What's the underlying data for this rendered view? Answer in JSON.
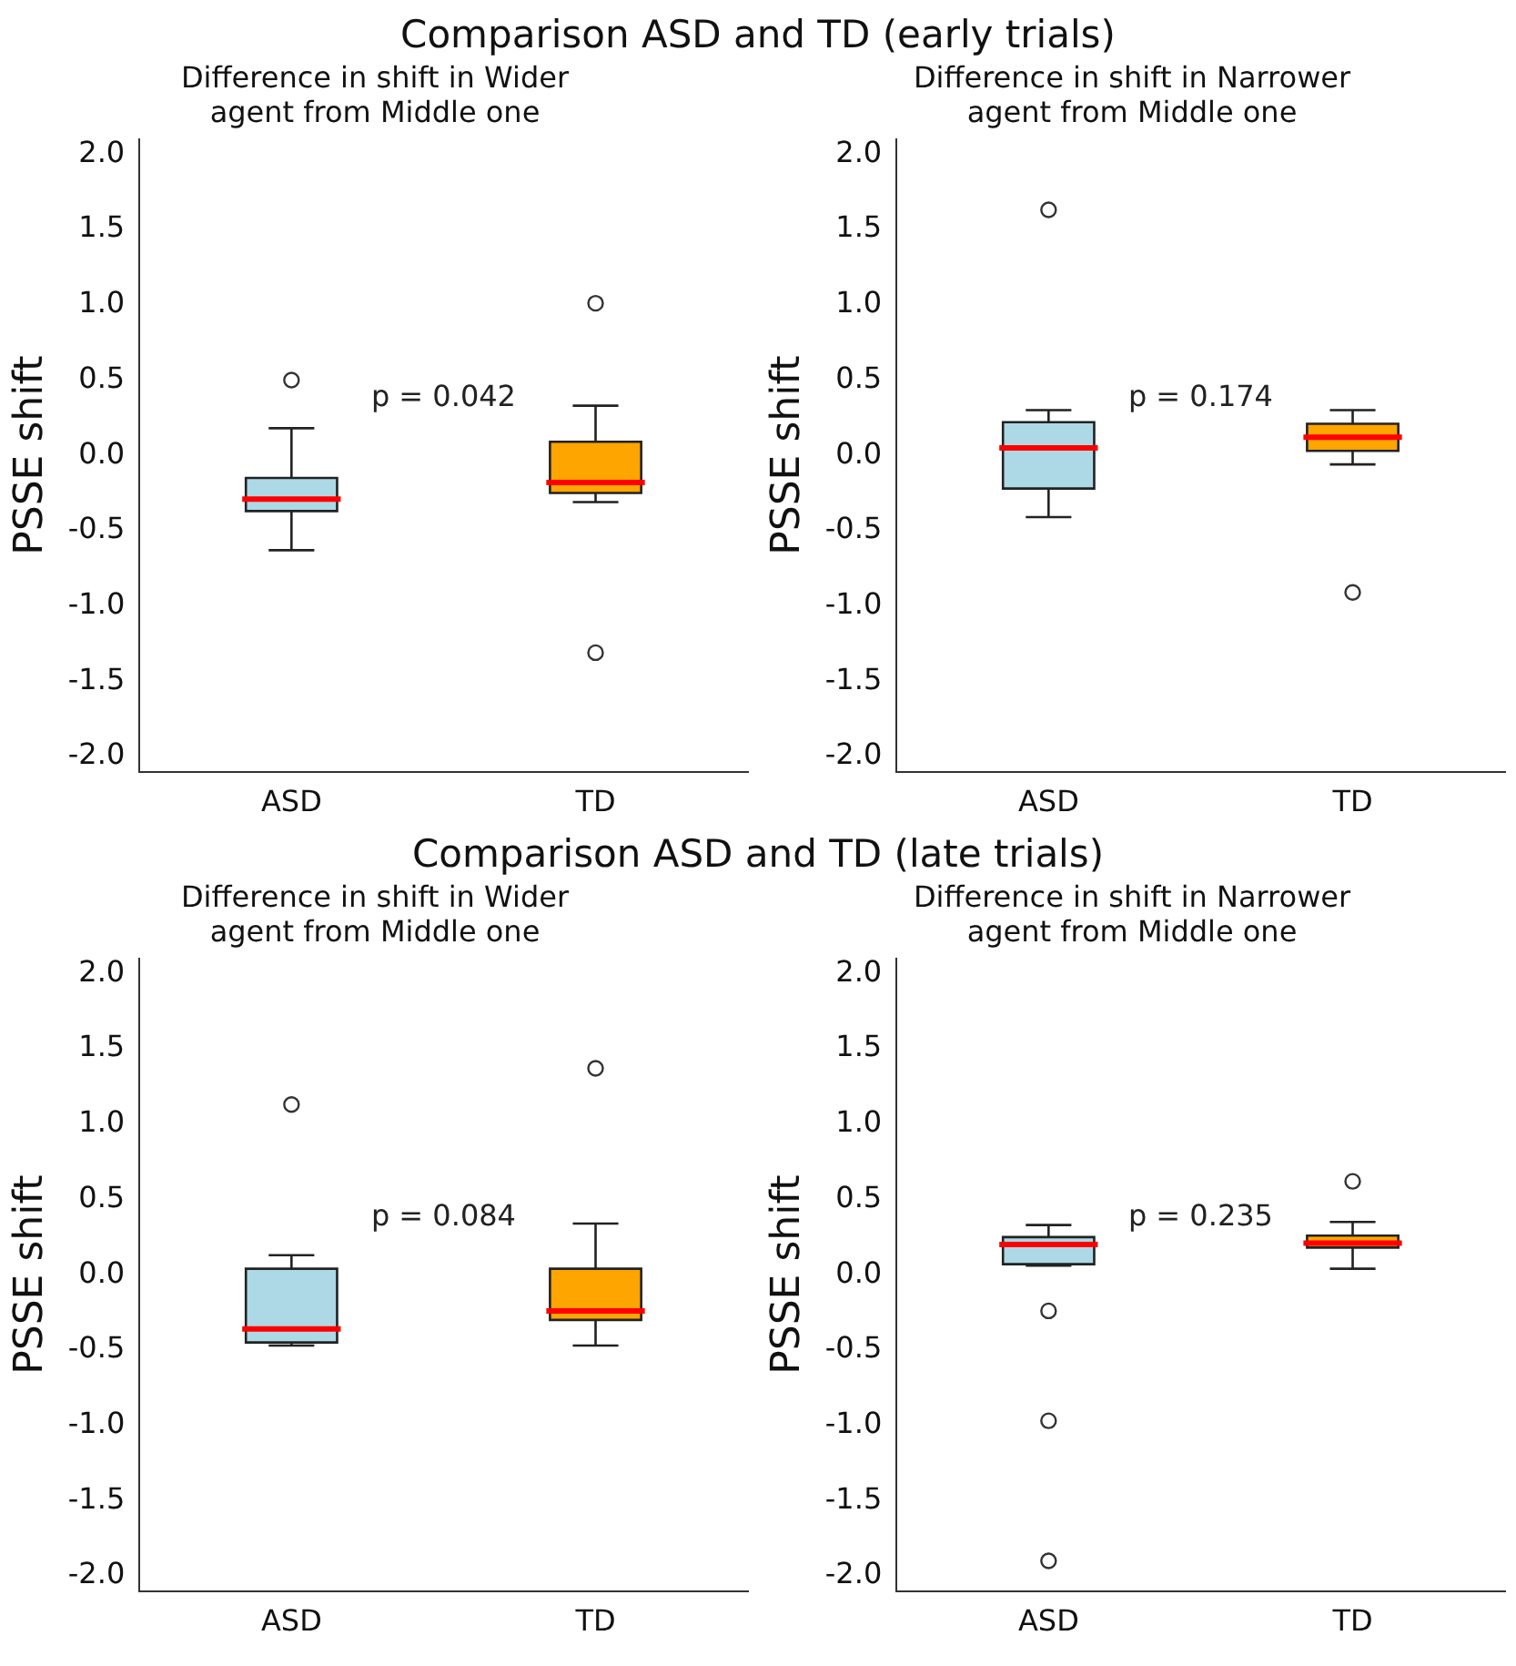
{
  "chart_data": [
    {
      "type": "other",
      "title": "Comparison ASD and TD (early trials)"
    },
    {
      "type": "box",
      "title": "Difference in shift in Wider\nagent from Middle one",
      "ylabel": "PSSE shift",
      "categories": [
        "ASD",
        "TD"
      ],
      "colors": [
        "#add8e6",
        "#ffa500"
      ],
      "marker": "circle",
      "annotations": [
        "p = 0.042"
      ],
      "ylim": [
        -2.1,
        2.1
      ],
      "yticks": [
        {
          "value": -2,
          "label": "-2.0"
        },
        {
          "value": -1.5,
          "label": "-1.5"
        },
        {
          "value": -1,
          "label": "-1.0"
        },
        {
          "value": -0.5,
          "label": "-0.5"
        },
        {
          "value": 0,
          "label": "0.0"
        },
        {
          "value": 0.5,
          "label": "0.5"
        },
        {
          "value": 1,
          "label": "1.0"
        },
        {
          "value": 1.5,
          "label": "1.5"
        },
        {
          "value": 2,
          "label": "2.0"
        }
      ],
      "boxes": [
        {
          "low": -0.63,
          "q1": -0.37,
          "median": -0.29,
          "q3": -0.15,
          "high": 0.18,
          "outliers": [
            0.5
          ]
        },
        {
          "low": -0.31,
          "q1": -0.25,
          "median": -0.18,
          "q3": 0.09,
          "high": 0.33,
          "outliers": [
            1.01,
            -1.31
          ]
        }
      ]
    },
    {
      "type": "box",
      "title": "Difference in shift in Narrower\nagent from Middle one",
      "ylabel": "PSSE shift",
      "categories": [
        "ASD",
        "TD"
      ],
      "colors": [
        "#add8e6",
        "#ffa500"
      ],
      "marker": "circle",
      "annotations": [
        "p = 0.174"
      ],
      "ylim": [
        -2.1,
        2.1
      ],
      "yticks": [
        {
          "value": -2,
          "label": "-2.0"
        },
        {
          "value": -1.5,
          "label": "-1.5"
        },
        {
          "value": -1,
          "label": "-1.0"
        },
        {
          "value": -0.5,
          "label": "-0.5"
        },
        {
          "value": 0,
          "label": "0.0"
        },
        {
          "value": 0.5,
          "label": "0.5"
        },
        {
          "value": 1,
          "label": "1.0"
        },
        {
          "value": 1.5,
          "label": "1.5"
        },
        {
          "value": 2,
          "label": "2.0"
        }
      ],
      "boxes": [
        {
          "low": -0.41,
          "q1": -0.22,
          "median": 0.05,
          "q3": 0.22,
          "high": 0.3,
          "outliers": [
            1.63
          ]
        },
        {
          "low": -0.06,
          "q1": 0.03,
          "median": 0.12,
          "q3": 0.21,
          "high": 0.3,
          "outliers": [
            -0.91
          ]
        }
      ]
    },
    {
      "type": "other",
      "title": "Comparison ASD and TD (late trials)"
    },
    {
      "type": "box",
      "title": "Difference in shift in Wider\nagent from Middle one",
      "ylabel": "PSSE shift",
      "categories": [
        "ASD",
        "TD"
      ],
      "colors": [
        "#add8e6",
        "#ffa500"
      ],
      "marker": "circle",
      "annotations": [
        "p = 0.084"
      ],
      "ylim": [
        -2.1,
        2.1
      ],
      "yticks": [
        {
          "value": -2,
          "label": "-2.0"
        },
        {
          "value": -1.5,
          "label": "-1.5"
        },
        {
          "value": -1,
          "label": "-1.0"
        },
        {
          "value": -0.5,
          "label": "-0.5"
        },
        {
          "value": 0,
          "label": "0.0"
        },
        {
          "value": 0.5,
          "label": "0.5"
        },
        {
          "value": 1,
          "label": "1.0"
        },
        {
          "value": 1.5,
          "label": "1.5"
        },
        {
          "value": 2,
          "label": "2.0"
        }
      ],
      "boxes": [
        {
          "low": -0.47,
          "q1": -0.45,
          "median": -0.36,
          "q3": 0.04,
          "high": 0.13,
          "outliers": [
            1.13
          ]
        },
        {
          "low": -0.47,
          "q1": -0.3,
          "median": -0.24,
          "q3": 0.04,
          "high": 0.34,
          "outliers": [
            1.37
          ]
        }
      ]
    },
    {
      "type": "box",
      "title": "Difference in shift in Narrower\nagent from Middle one",
      "ylabel": "PSSE shift",
      "categories": [
        "ASD",
        "TD"
      ],
      "colors": [
        "#add8e6",
        "#ffa500"
      ],
      "marker": "circle",
      "annotations": [
        "p = 0.235"
      ],
      "ylim": [
        -2.1,
        2.1
      ],
      "yticks": [
        {
          "value": -2,
          "label": "-2.0"
        },
        {
          "value": -1.5,
          "label": "-1.5"
        },
        {
          "value": -1,
          "label": "-1.0"
        },
        {
          "value": -0.5,
          "label": "-0.5"
        },
        {
          "value": 0,
          "label": "0.0"
        },
        {
          "value": 0.5,
          "label": "0.5"
        },
        {
          "value": 1,
          "label": "1.0"
        },
        {
          "value": 1.5,
          "label": "1.5"
        },
        {
          "value": 2,
          "label": "2.0"
        }
      ],
      "boxes": [
        {
          "low": 0.06,
          "q1": 0.07,
          "median": 0.2,
          "q3": 0.25,
          "high": 0.33,
          "outliers": [
            -0.24,
            -0.97,
            -1.9
          ]
        },
        {
          "low": 0.04,
          "q1": 0.18,
          "median": 0.21,
          "q3": 0.26,
          "high": 0.35,
          "outliers": [
            0.62
          ]
        }
      ]
    }
  ]
}
